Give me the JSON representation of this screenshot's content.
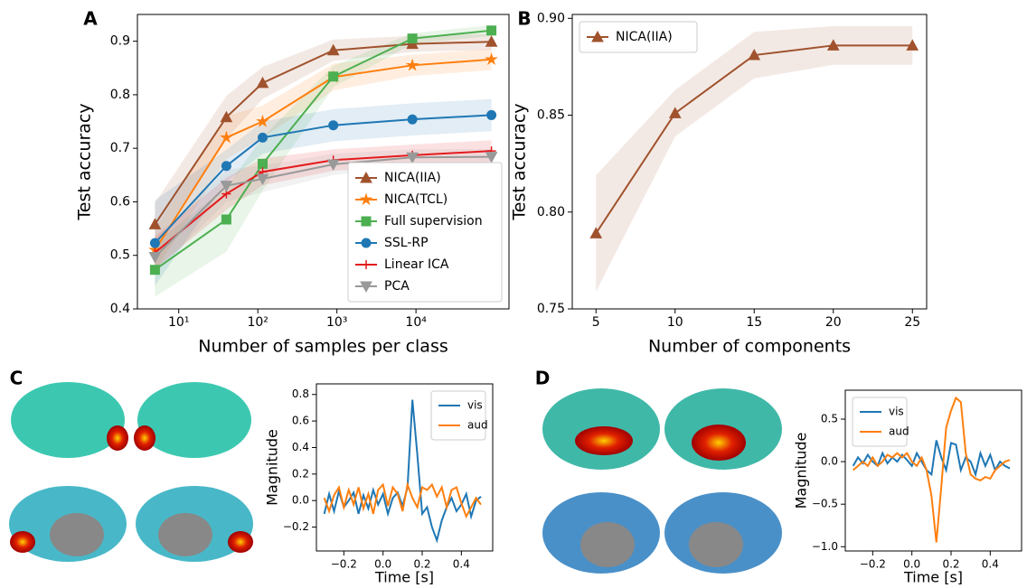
{
  "chart_data": [
    {
      "type": "line",
      "panel_label": "A",
      "xlabel": "Number of samples per class",
      "ylabel": "Test accuracy",
      "xscale": "log",
      "xlim": [
        3,
        150000
      ],
      "ylim": [
        0.4,
        0.95
      ],
      "xticks": [
        {
          "value": 10,
          "label": "10¹"
        },
        {
          "value": 100,
          "label": "10²"
        },
        {
          "value": 1000,
          "label": "10³"
        },
        {
          "value": 10000,
          "label": "10⁴"
        }
      ],
      "yticks": [
        0.4,
        0.5,
        0.6,
        0.7,
        0.8,
        0.9
      ],
      "legend": "lower right",
      "x": [
        5,
        40,
        115,
        900,
        9000,
        90000
      ],
      "series": [
        {
          "name": "NICA(IIA)",
          "color": "#a0522d",
          "marker": "triangle-up",
          "values": [
            0.558,
            0.758,
            0.822,
            0.883,
            0.895,
            0.899
          ],
          "errors": [
            0.04,
            0.04,
            0.03,
            0.02,
            0.015,
            0.015
          ]
        },
        {
          "name": "NICA(TCL)",
          "color": "#ff7f0e",
          "marker": "star",
          "values": [
            0.51,
            0.72,
            0.75,
            0.833,
            0.855,
            0.866
          ],
          "errors": [
            0.04,
            0.04,
            0.03,
            0.025,
            0.02,
            0.02
          ]
        },
        {
          "name": "Full supervision",
          "color": "#4caf50",
          "marker": "square",
          "values": [
            0.473,
            0.567,
            0.671,
            0.834,
            0.905,
            0.92
          ],
          "errors": [
            0.05,
            0.06,
            0.05,
            0.02,
            0.01,
            0.01
          ]
        },
        {
          "name": "SSL-RP",
          "color": "#1f77b4",
          "marker": "circle",
          "values": [
            0.523,
            0.667,
            0.72,
            0.743,
            0.754,
            0.762
          ],
          "errors": [
            0.08,
            0.03,
            0.03,
            0.03,
            0.03,
            0.03
          ]
        },
        {
          "name": "Linear ICA",
          "color": "#e41a1c",
          "marker": "plus",
          "values": [
            0.505,
            0.615,
            0.656,
            0.678,
            0.687,
            0.695
          ],
          "errors": [
            0.03,
            0.03,
            0.025,
            0.02,
            0.02,
            0.02
          ]
        },
        {
          "name": "PCA",
          "color": "#999999",
          "marker": "triangle-down",
          "values": [
            0.497,
            0.63,
            0.643,
            0.67,
            0.683,
            0.684
          ],
          "errors": [
            0.03,
            0.03,
            0.025,
            0.02,
            0.015,
            0.015
          ]
        }
      ]
    },
    {
      "type": "line",
      "panel_label": "B",
      "xlabel": "Number of components",
      "ylabel": "Test accuracy",
      "xlim": [
        3.5,
        25.9
      ],
      "ylim": [
        0.75,
        0.902
      ],
      "xticks": [
        5,
        10,
        15,
        20,
        25
      ],
      "yticks": [
        0.75,
        {
          "value": 0.8,
          "label": "0.80"
        },
        0.85,
        {
          "value": 0.9,
          "label": "0.90"
        }
      ],
      "legend": "upper left",
      "x": [
        5,
        10,
        15,
        20,
        25
      ],
      "series": [
        {
          "name": "NICA(IIA)",
          "color": "#a0522d",
          "marker": "triangle-up",
          "values": [
            0.789,
            0.851,
            0.881,
            0.886,
            0.886
          ],
          "errors": [
            0.03,
            0.012,
            0.012,
            0.01,
            0.01
          ]
        }
      ]
    },
    {
      "type": "line",
      "panel_label": "C",
      "xlabel": "Time [s]",
      "ylabel": "Magnitude",
      "xlim": [
        -0.34,
        0.56
      ],
      "ylim": [
        -0.38,
        0.88
      ],
      "xticks": [
        {
          "value": -0.2,
          "label": "−0.2"
        },
        {
          "value": 0,
          "label": "0.0"
        },
        0.2,
        0.4
      ],
      "yticks": [
        {
          "value": -0.2,
          "label": "−0.2"
        },
        {
          "value": 0,
          "label": "0.0"
        },
        0.2,
        0.4,
        0.6,
        0.8
      ],
      "legend": "upper right",
      "x": [
        -0.3,
        -0.275,
        -0.25,
        -0.225,
        -0.2,
        -0.175,
        -0.15,
        -0.125,
        -0.1,
        -0.075,
        -0.05,
        -0.025,
        0,
        0.025,
        0.05,
        0.075,
        0.1,
        0.125,
        0.15,
        0.175,
        0.2,
        0.225,
        0.25,
        0.275,
        0.3,
        0.325,
        0.35,
        0.375,
        0.4,
        0.425,
        0.45,
        0.475,
        0.5
      ],
      "series": [
        {
          "name": "vis",
          "color": "#1f77b4",
          "values": [
            -0.1,
            0.05,
            -0.08,
            0.07,
            -0.05,
            0.0,
            0.06,
            -0.1,
            0.04,
            -0.06,
            0.08,
            -0.03,
            0.05,
            -0.1,
            0.02,
            0.06,
            -0.04,
            0.1,
            0.76,
            0.35,
            -0.1,
            -0.05,
            -0.2,
            -0.3,
            -0.15,
            -0.05,
            0.02,
            -0.08,
            -0.03,
            0.05,
            -0.12,
            0.0,
            0.03
          ]
        },
        {
          "name": "aud",
          "color": "#ff7f0e",
          "values": [
            0.02,
            -0.08,
            0.04,
            0.1,
            -0.05,
            0.08,
            -0.03,
            0.1,
            -0.06,
            0.05,
            -0.1,
            0.08,
            0.12,
            -0.04,
            0.1,
            0.05,
            -0.08,
            0.12,
            0.02,
            -0.05,
            0.1,
            0.08,
            0.12,
            0.03,
            0.1,
            -0.05,
            0.08,
            0.1,
            -0.02,
            -0.12,
            -0.05,
            0.02,
            -0.03
          ]
        }
      ]
    },
    {
      "type": "line",
      "panel_label": "D",
      "xlabel": "Time [s]",
      "ylabel": "Magnitude",
      "xlim": [
        -0.34,
        0.56
      ],
      "ylim": [
        -1.05,
        0.84
      ],
      "xticks": [
        {
          "value": -0.2,
          "label": "−0.2"
        },
        {
          "value": 0,
          "label": "0.0"
        },
        0.2,
        0.4
      ],
      "yticks": [
        {
          "value": -1,
          "label": "−1.0"
        },
        {
          "value": -0.5,
          "label": "−0.5"
        },
        {
          "value": 0,
          "label": "0.0"
        },
        0.5
      ],
      "legend": "upper left",
      "x": [
        -0.3,
        -0.275,
        -0.25,
        -0.225,
        -0.2,
        -0.175,
        -0.15,
        -0.125,
        -0.1,
        -0.075,
        -0.05,
        -0.025,
        0,
        0.025,
        0.05,
        0.075,
        0.1,
        0.125,
        0.15,
        0.175,
        0.2,
        0.225,
        0.25,
        0.275,
        0.3,
        0.325,
        0.35,
        0.375,
        0.4,
        0.425,
        0.45,
        0.475,
        0.5
      ],
      "series": [
        {
          "name": "vis",
          "color": "#1f77b4",
          "values": [
            -0.05,
            0.05,
            -0.02,
            0.08,
            0.0,
            -0.05,
            0.1,
            -0.02,
            0.05,
            0.0,
            0.08,
            0.02,
            -0.05,
            0.1,
            0.0,
            -0.1,
            -0.15,
            0.25,
            0.05,
            -0.1,
            0.22,
            0.2,
            -0.1,
            0.05,
            0.0,
            -0.15,
            0.1,
            -0.05,
            0.08,
            -0.1,
            0.0,
            -0.05,
            -0.08
          ]
        },
        {
          "name": "aud",
          "color": "#ff7f0e",
          "values": [
            -0.1,
            -0.05,
            0.0,
            -0.05,
            0.05,
            -0.05,
            0.0,
            0.08,
            0.05,
            0.1,
            0.05,
            0.1,
            0.0,
            -0.05,
            0.05,
            -0.1,
            -0.4,
            -0.95,
            -0.3,
            0.4,
            0.6,
            0.75,
            0.7,
            0.1,
            -0.15,
            -0.2,
            -0.22,
            -0.18,
            -0.2,
            -0.1,
            -0.05,
            0.0,
            0.02
          ]
        }
      ]
    }
  ]
}
